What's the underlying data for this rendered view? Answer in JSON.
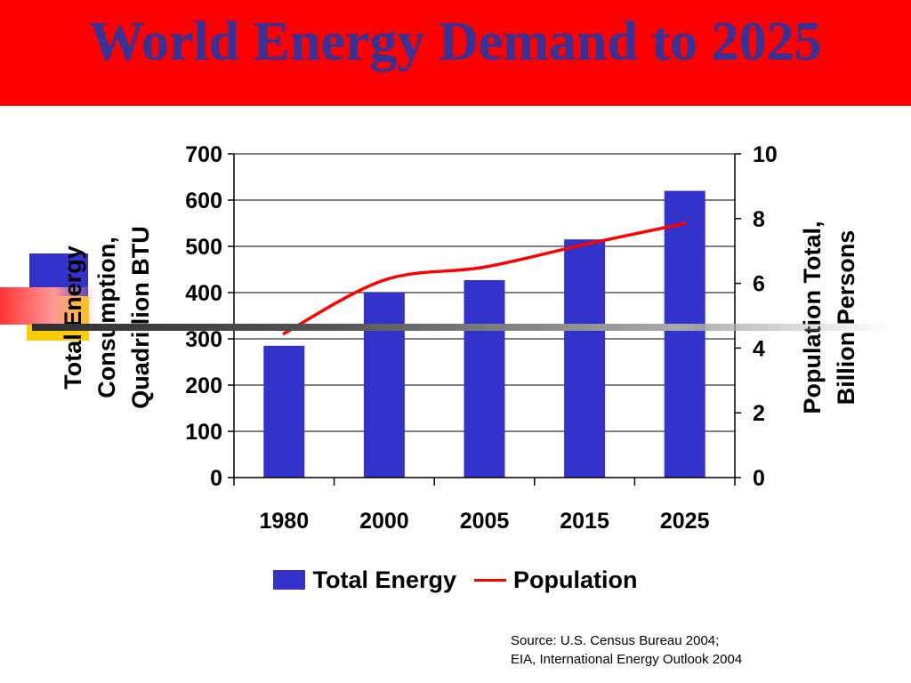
{
  "slide": {
    "title": "World Energy Demand to 2025",
    "source_lines": [
      "Source: U.S. Census Bureau 2004;",
      "EIA, International Energy Outlook 2004"
    ]
  },
  "colors": {
    "title_bar": "#ff0000",
    "title_text": "#333399",
    "bar": "#3333cc",
    "line": "#ff0000"
  },
  "chart_data": {
    "type": "bar",
    "title": "",
    "categories": [
      "1980",
      "2000",
      "2005",
      "2015",
      "2025"
    ],
    "y_left": {
      "label_lines": [
        "Total Energy",
        "Consumption,",
        "Quadrillion BTU"
      ],
      "min": 0,
      "max": 700,
      "ticks": [
        0,
        100,
        200,
        300,
        400,
        500,
        600,
        700
      ]
    },
    "y_right": {
      "label_lines": [
        "Population Total,",
        "Billion Persons"
      ],
      "min": 0,
      "max": 10,
      "ticks": [
        0,
        2,
        4,
        6,
        8,
        10
      ]
    },
    "series": [
      {
        "name": "Total Energy",
        "type": "bar",
        "axis": "left",
        "values": [
          285,
          400,
          427,
          515,
          620
        ]
      },
      {
        "name": "Population",
        "type": "line",
        "axis": "right",
        "values": [
          4.45,
          6.1,
          6.5,
          7.2,
          7.85
        ]
      }
    ],
    "grid": true,
    "legend_position": "bottom"
  }
}
